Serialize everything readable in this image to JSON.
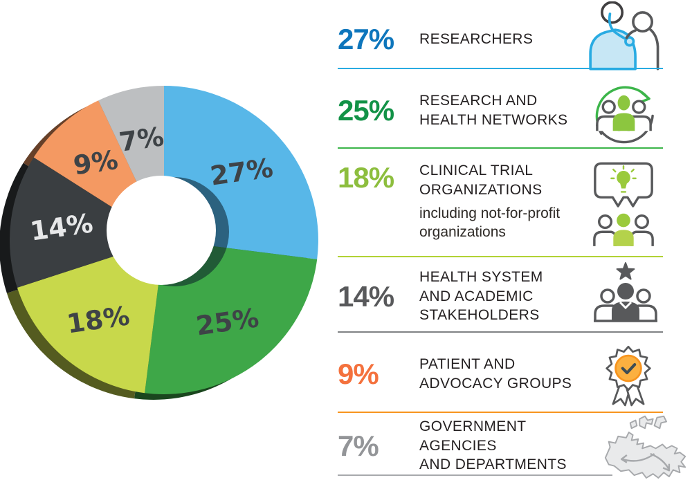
{
  "chart_data": {
    "type": "pie",
    "variant": "3d-donut",
    "unit": "%",
    "start_angle_deg": 0,
    "direction": "clockwise",
    "legend_position": "right",
    "categories": [
      "Researchers",
      "Research and Health Networks",
      "Clinical Trial Organizations",
      "Health System and Academic Stakeholders",
      "Patient and Advocacy Groups",
      "Government Agencies and Departments"
    ],
    "values": [
      27,
      25,
      18,
      14,
      9,
      7
    ],
    "slices": [
      {
        "label": "Researchers",
        "value": 27,
        "display": "27%",
        "color": "#58B7E8",
        "label_color": "#3E4347"
      },
      {
        "label": "Research and Health Networks",
        "value": 25,
        "display": "25%",
        "color": "#3EA748",
        "label_color": "#3E4347"
      },
      {
        "label": "Clinical Trial Organizations",
        "value": 18,
        "display": "18%",
        "color": "#C8D84B",
        "label_color": "#3E4347"
      },
      {
        "label": "Health System and Academic Stakeholders",
        "value": 14,
        "display": "14%",
        "color": "#3A3E41",
        "label_color": "#E7E8E9"
      },
      {
        "label": "Patient and Advocacy Groups",
        "value": 9,
        "display": "9%",
        "color": "#F49962",
        "label_color": "#3E4347"
      },
      {
        "label": "Government Agencies and Departments",
        "value": 7,
        "display": "7%",
        "color": "#BDBFC1",
        "label_color": "#3E4347"
      }
    ]
  },
  "legend": {
    "rows": [
      {
        "percent": "27%",
        "percent_color": "#0E76BC",
        "title": "RESEARCHERS",
        "subtitle": "",
        "divider_color": "#29ABE2",
        "icon": "doctor-patient-icon"
      },
      {
        "percent": "25%",
        "percent_color": "#129247",
        "title": "RESEARCH AND\nHEALTH NETWORKS",
        "subtitle": "",
        "divider_color": "#3CB54A",
        "icon": "people-cycle-icon"
      },
      {
        "percent": "18%",
        "percent_color": "#8DBE3E",
        "title": "CLINICAL TRIAL\nORGANIZATIONS",
        "subtitle": "including not-for-profit\norganizations",
        "divider_color": "#B2D235",
        "icon": "idea-discussion-icon"
      },
      {
        "percent": "14%",
        "percent_color": "#58595B",
        "title": "HEALTH SYSTEM\nAND ACADEMIC\nSTAKEHOLDERS",
        "subtitle": "",
        "divider_color": "#808285",
        "icon": "team-star-icon"
      },
      {
        "percent": "9%",
        "percent_color": "#F4713D",
        "title": "PATIENT AND\nADVOCACY GROUPS",
        "subtitle": "",
        "divider_color": "#F7941E",
        "icon": "award-ribbon-icon"
      },
      {
        "percent": "7%",
        "percent_color": "#939598",
        "title": "GOVERNMENT AGENCIES\nAND DEPARTMENTS",
        "subtitle": "",
        "divider_color": "#A7A9AC",
        "icon": "canada-map-icon"
      }
    ]
  }
}
